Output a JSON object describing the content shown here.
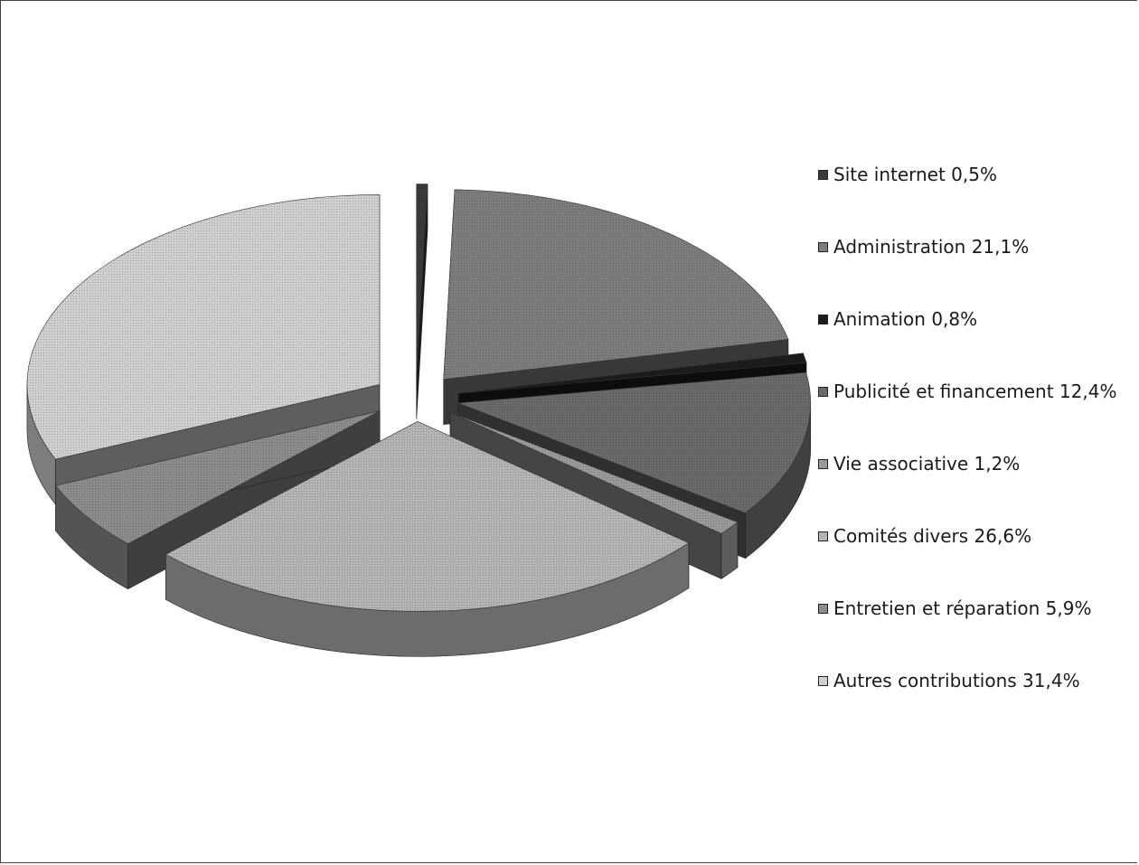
{
  "chart_data": {
    "type": "pie",
    "style": "3d-exploded",
    "title": "",
    "legend_position": "right",
    "categories": [
      "Site internet 0,5%",
      "Administration 21,1%",
      "Animation 0,8%",
      "Publicité et financement 12,4%",
      "Vie associative 1,2%",
      "Comités divers 26,6%",
      "Entretien et réparation 5,9%",
      "Autres contributions 31,4%"
    ],
    "values": [
      0.5,
      21.1,
      0.8,
      12.4,
      1.2,
      26.6,
      5.9,
      31.4
    ],
    "colors": [
      "#3a3a3a",
      "#7d7d7d",
      "#1c1c1c",
      "#6a6a6a",
      "#9a9a9a",
      "#b4b4b4",
      "#8c8c8c",
      "#d0d0d0"
    ]
  }
}
